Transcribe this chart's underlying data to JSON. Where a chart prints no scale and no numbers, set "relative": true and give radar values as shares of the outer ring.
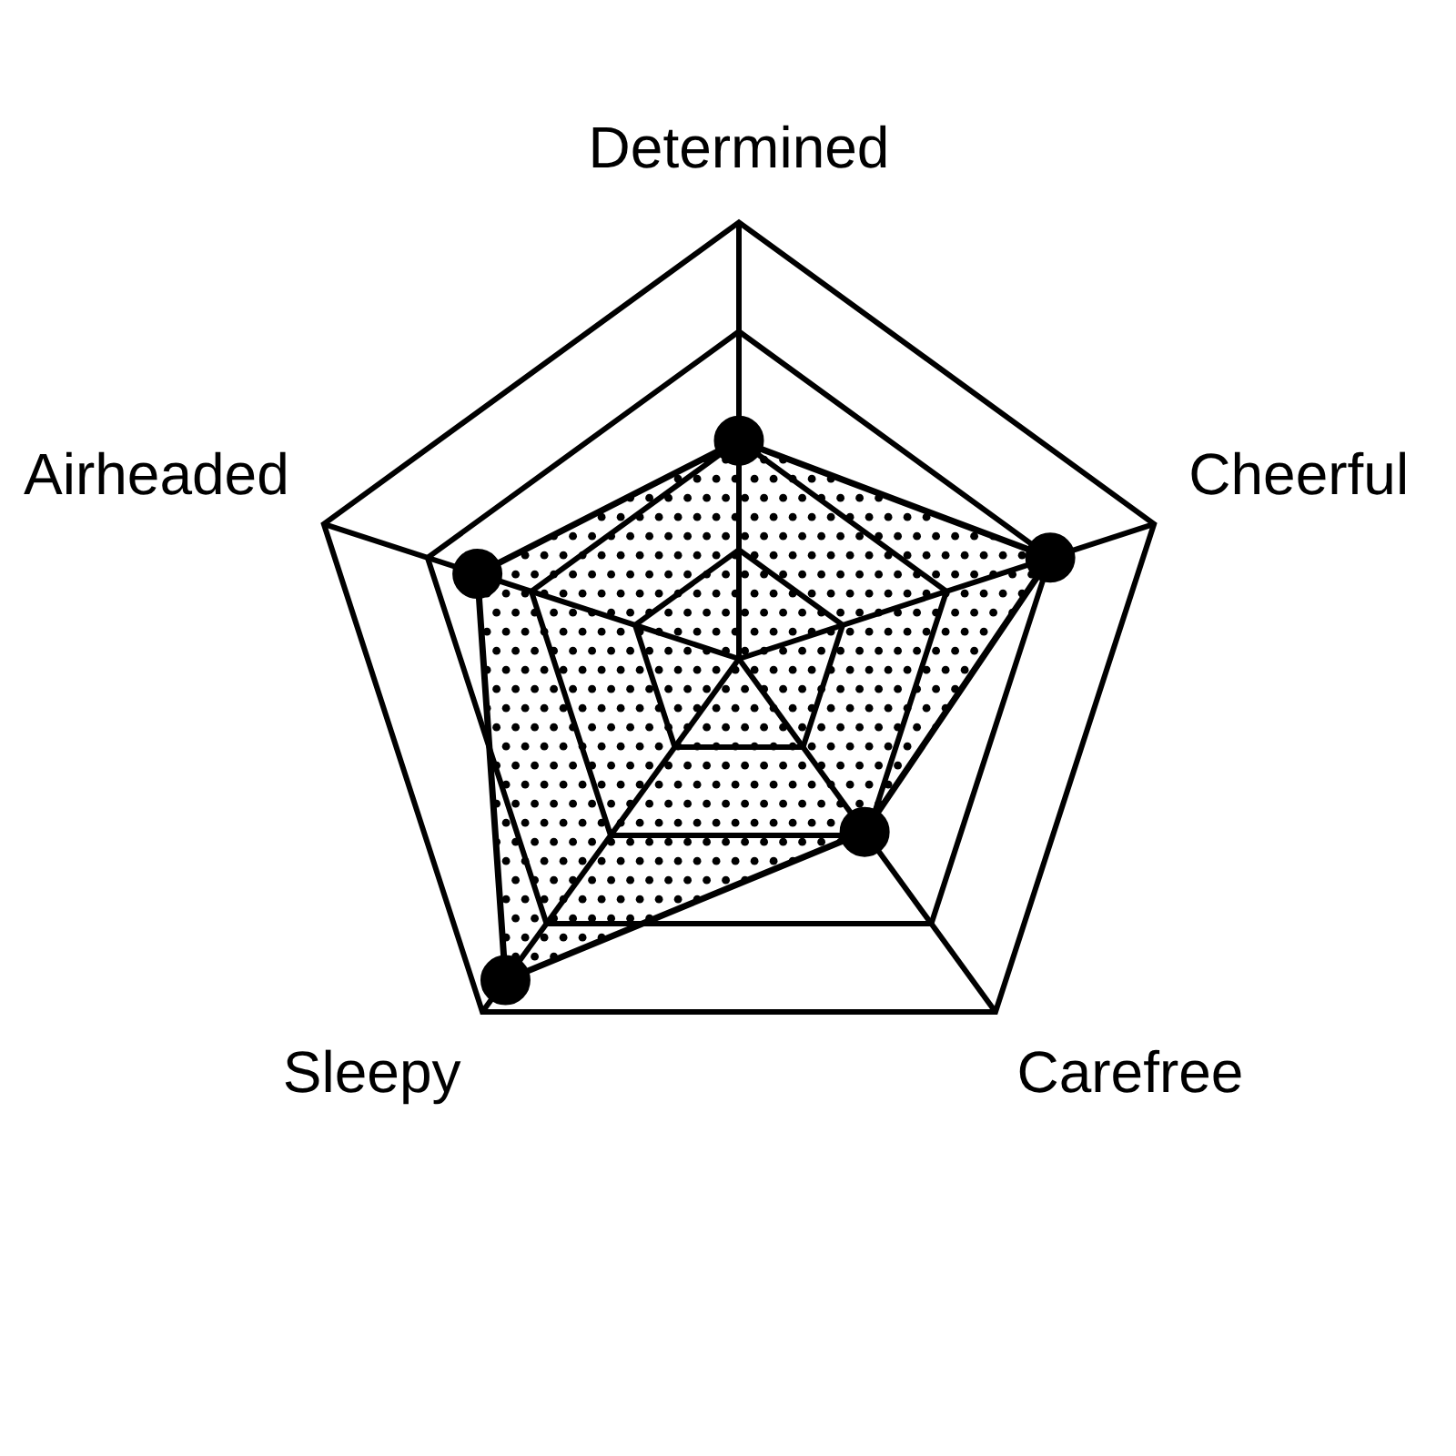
{
  "chart_data": {
    "type": "radar",
    "categories": [
      "Determined",
      "Cheerful",
      "Carefree",
      "Sleepy",
      "Airheaded"
    ],
    "series": [
      {
        "color": "#000000",
        "values": [
          0.5,
          0.75,
          0.49,
          0.91,
          0.63
        ]
      }
    ],
    "relative": true,
    "grid": true,
    "marker": "circle",
    "legend": false
  }
}
